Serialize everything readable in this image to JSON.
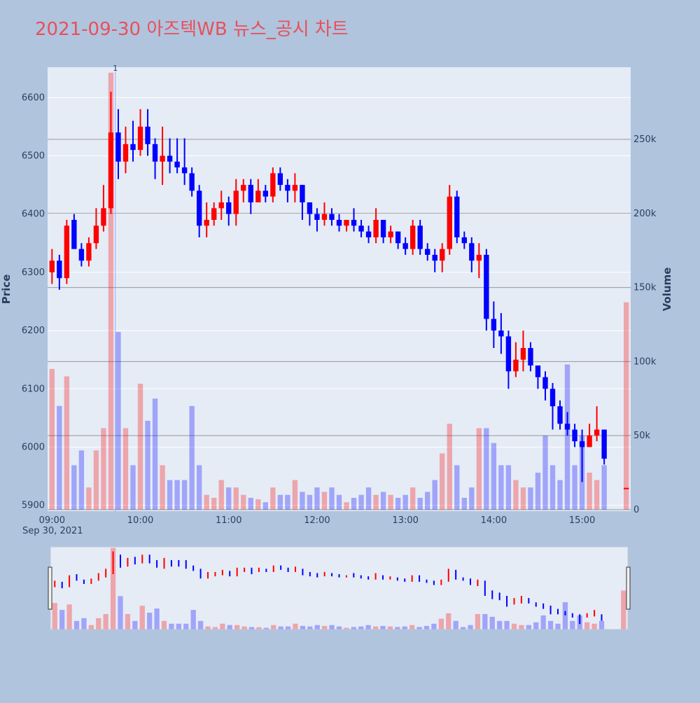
{
  "chart_data": {
    "type": "candlestick",
    "title": "2021-09-30 아즈텍WB 뉴스_공시 차트",
    "ylabel": "Price",
    "y2label": "Volume",
    "x_sublabel": "Sep 30, 2021",
    "x": [
      "09:00",
      "09:05",
      "09:10",
      "09:15",
      "09:20",
      "09:25",
      "09:30",
      "09:35",
      "09:40",
      "09:45",
      "09:50",
      "09:55",
      "10:00",
      "10:05",
      "10:10",
      "10:15",
      "10:20",
      "10:25",
      "10:30",
      "10:35",
      "10:40",
      "10:45",
      "10:50",
      "10:55",
      "11:00",
      "11:05",
      "11:10",
      "11:15",
      "11:20",
      "11:25",
      "11:30",
      "11:35",
      "11:40",
      "11:45",
      "11:50",
      "11:55",
      "12:00",
      "12:05",
      "12:10",
      "12:15",
      "12:20",
      "12:25",
      "12:30",
      "12:35",
      "12:40",
      "12:45",
      "12:50",
      "12:55",
      "13:00",
      "13:05",
      "13:10",
      "13:15",
      "13:20",
      "13:25",
      "13:30",
      "13:35",
      "13:40",
      "13:45",
      "13:50",
      "13:55",
      "14:00",
      "14:05",
      "14:10",
      "14:15",
      "14:20",
      "14:25",
      "14:30",
      "14:35",
      "14:40",
      "14:45",
      "14:50",
      "14:55",
      "15:00",
      "15:05",
      "15:10",
      "15:15",
      "15:30"
    ],
    "open": [
      6300,
      6320,
      6290,
      6390,
      6340,
      6320,
      6350,
      6380,
      6410,
      6540,
      6490,
      6520,
      6510,
      6550,
      6520,
      6490,
      6500,
      6490,
      6480,
      6470,
      6440,
      6380,
      6390,
      6410,
      6420,
      6400,
      6440,
      6450,
      6420,
      6440,
      6430,
      6470,
      6450,
      6440,
      6450,
      6420,
      6400,
      6390,
      6400,
      6390,
      6380,
      6390,
      6380,
      6370,
      6360,
      6390,
      6360,
      6370,
      6350,
      6340,
      6380,
      6340,
      6330,
      6320,
      6340,
      6430,
      6360,
      6350,
      6320,
      6330,
      6220,
      6200,
      6190,
      6130,
      6150,
      6170,
      6140,
      6120,
      6100,
      6070,
      6040,
      6030,
      6010,
      6000,
      6020,
      6030,
      5930
    ],
    "high": [
      6340,
      6330,
      6390,
      6400,
      6350,
      6360,
      6410,
      6450,
      6610,
      6580,
      6550,
      6560,
      6580,
      6580,
      6530,
      6550,
      6530,
      6530,
      6530,
      6480,
      6450,
      6420,
      6420,
      6440,
      6430,
      6460,
      6460,
      6460,
      6460,
      6450,
      6480,
      6480,
      6460,
      6470,
      6450,
      6420,
      6410,
      6420,
      6410,
      6400,
      6390,
      6410,
      6390,
      6380,
      6410,
      6390,
      6380,
      6370,
      6360,
      6390,
      6390,
      6350,
      6340,
      6350,
      6450,
      6440,
      6370,
      6360,
      6350,
      6340,
      6250,
      6230,
      6200,
      6180,
      6200,
      6180,
      6140,
      6130,
      6110,
      6080,
      6060,
      6040,
      6030,
      6040,
      6070,
      6030,
      5930
    ],
    "low": [
      6280,
      6270,
      6280,
      6340,
      6310,
      6310,
      6340,
      6370,
      6400,
      6460,
      6470,
      6490,
      6500,
      6500,
      6460,
      6450,
      6470,
      6470,
      6450,
      6430,
      6360,
      6360,
      6380,
      6390,
      6380,
      6380,
      6420,
      6400,
      6420,
      6420,
      6420,
      6440,
      6420,
      6420,
      6390,
      6380,
      6370,
      6380,
      6380,
      6370,
      6370,
      6370,
      6360,
      6350,
      6350,
      6350,
      6350,
      6340,
      6330,
      6330,
      6330,
      6320,
      6300,
      6300,
      6330,
      6350,
      6340,
      6300,
      6290,
      6200,
      6170,
      6160,
      6100,
      6120,
      6130,
      6130,
      6100,
      6080,
      6030,
      6030,
      6020,
      6000,
      5940,
      6000,
      6010,
      5970,
      5930
    ],
    "close": [
      6320,
      6290,
      6380,
      6340,
      6320,
      6350,
      6380,
      6410,
      6540,
      6490,
      6520,
      6510,
      6550,
      6520,
      6490,
      6500,
      6490,
      6480,
      6470,
      6440,
      6380,
      6390,
      6410,
      6420,
      6400,
      6440,
      6450,
      6420,
      6440,
      6430,
      6470,
      6450,
      6440,
      6450,
      6420,
      6400,
      6390,
      6400,
      6390,
      6380,
      6390,
      6380,
      6370,
      6360,
      6390,
      6360,
      6370,
      6350,
      6340,
      6380,
      6340,
      6330,
      6320,
      6340,
      6430,
      6360,
      6350,
      6320,
      6330,
      6220,
      6200,
      6190,
      6130,
      6150,
      6170,
      6140,
      6120,
      6100,
      6070,
      6040,
      6030,
      6010,
      6000,
      6020,
      6030,
      5980,
      5930
    ],
    "volume": [
      95000,
      70000,
      90000,
      30000,
      40000,
      15000,
      40000,
      55000,
      295000,
      120000,
      55000,
      30000,
      85000,
      60000,
      75000,
      30000,
      20000,
      20000,
      20000,
      70000,
      30000,
      10000,
      8000,
      20000,
      15000,
      15000,
      10000,
      8000,
      7000,
      5000,
      15000,
      10000,
      10000,
      20000,
      12000,
      10000,
      15000,
      12000,
      15000,
      10000,
      5000,
      8000,
      10000,
      15000,
      10000,
      12000,
      10000,
      8000,
      10000,
      15000,
      8000,
      12000,
      20000,
      38000,
      58000,
      30000,
      8000,
      15000,
      55000,
      55000,
      45000,
      30000,
      30000,
      20000,
      15000,
      15000,
      25000,
      50000,
      30000,
      20000,
      98000,
      30000,
      50000,
      25000,
      20000,
      30000,
      140000
    ],
    "increasing_color": "#ff0000",
    "decreasing_color": "#0000ff",
    "xlim": [
      "08:57",
      "15:33"
    ],
    "xticks": [
      "09:00",
      "10:00",
      "11:00",
      "12:00",
      "13:00",
      "14:00",
      "15:00"
    ],
    "ylim": [
      5890,
      6652
    ],
    "yticks": [
      5900,
      6000,
      6100,
      6200,
      6300,
      6400,
      6500,
      6600
    ],
    "y2lim": [
      -1000,
      298700
    ],
    "y2ticks": [
      0,
      {
        "value": 50000,
        "label": "50k"
      },
      {
        "value": 100000,
        "label": "100k"
      },
      {
        "value": 150000,
        "label": "150k"
      },
      {
        "value": 200000,
        "label": "200k"
      },
      {
        "value": 250000,
        "label": "250k"
      }
    ],
    "annotations": [
      {
        "x": "09:43",
        "text": "1"
      }
    ],
    "grid": true,
    "rangeslider": true
  }
}
